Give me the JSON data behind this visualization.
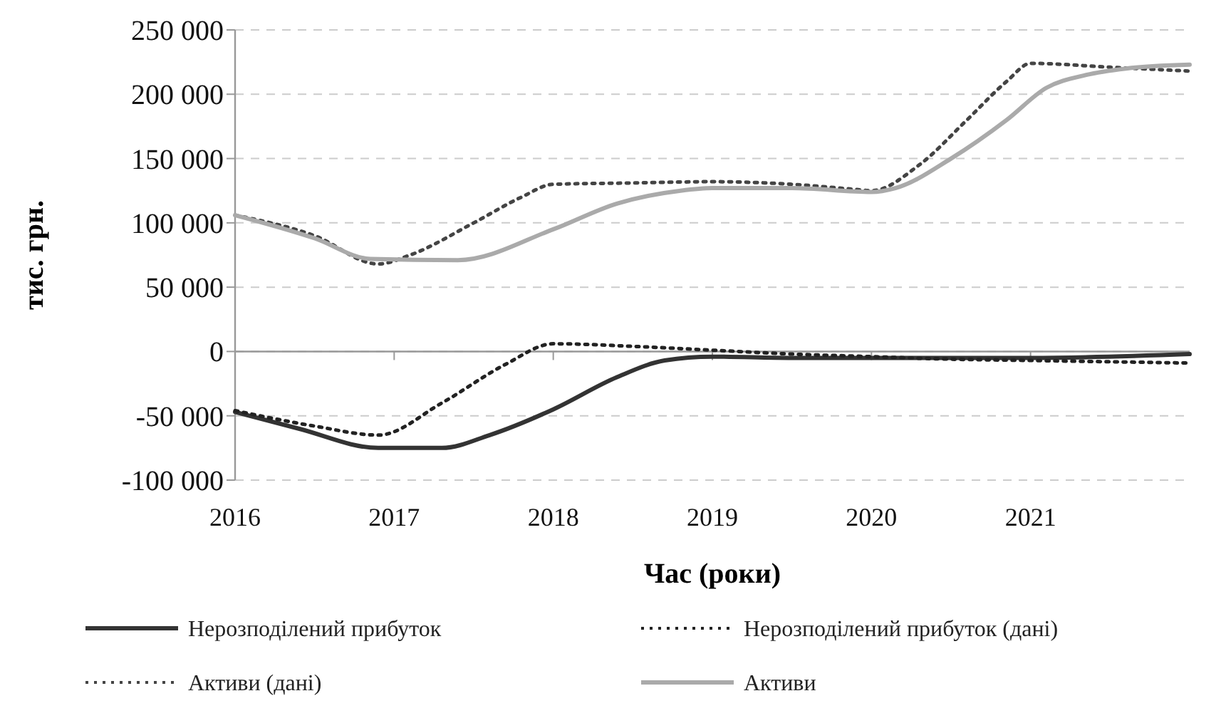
{
  "chart_data": {
    "type": "line",
    "xlabel": "Час (роки)",
    "ylabel": "тис. грн.",
    "xlim": [
      2016,
      2022
    ],
    "xticks": [
      2016,
      2017,
      2018,
      2019,
      2020,
      2021
    ],
    "ylim": [
      -100000,
      250000
    ],
    "yticks": [
      {
        "value": -100000,
        "label": "-100 000"
      },
      {
        "value": -50000,
        "label": "-50 000"
      },
      0,
      {
        "value": 50000,
        "label": "50 000"
      },
      {
        "value": 100000,
        "label": "100 000"
      },
      {
        "value": 150000,
        "label": "150 000"
      },
      {
        "value": 200000,
        "label": "200 000"
      },
      {
        "value": 250000,
        "label": "250 000"
      }
    ],
    "grid": "y",
    "legend": "bottom",
    "series": [
      {
        "name": "Нерозподілений прибуток",
        "color": "#333333",
        "line_style": "solid",
        "x": [
          2016,
          2016.4,
          2016.9,
          2017.3,
          2017.6,
          2018,
          2018.4,
          2018.7,
          2019,
          2019.5,
          2020,
          2021,
          2022
        ],
        "values": [
          -47000,
          -60000,
          -75000,
          -75000,
          -65000,
          -45000,
          -20000,
          -7000,
          -4000,
          -5000,
          -5000,
          -5000,
          -2000
        ]
      },
      {
        "name": "Нерозподілений прибуток (дані)",
        "color": "#222222",
        "line_style": "dotted",
        "x": [
          2016,
          2016.5,
          2016.9,
          2017.3,
          2017.7,
          2018,
          2018.5,
          2019,
          2019.5,
          2020,
          2020.5,
          2021,
          2021.5,
          2022
        ],
        "values": [
          -46000,
          -58000,
          -65000,
          -40000,
          -10000,
          6000,
          4000,
          1000,
          -2000,
          -4000,
          -6000,
          -7000,
          -8000,
          -9000
        ]
      },
      {
        "name": "Активи (дані)",
        "color": "#444444",
        "line_style": "dotted",
        "x": [
          2016,
          2016.5,
          2016.9,
          2017.1,
          2017.5,
          2017.8,
          2018,
          2018.5,
          2019,
          2019.5,
          2019.9,
          2020,
          2020.3,
          2020.6,
          2020.85,
          2021,
          2021.5,
          2022
        ],
        "values": [
          106000,
          90000,
          68000,
          75000,
          100000,
          120000,
          130000,
          131000,
          132000,
          130000,
          126000,
          125000,
          145000,
          180000,
          210000,
          224000,
          221000,
          218000
        ]
      },
      {
        "name": "Активи",
        "color": "#aaaaaa",
        "line_style": "solid",
        "x": [
          2016,
          2016.5,
          2016.85,
          2017.4,
          2018,
          2018.4,
          2018.8,
          2019,
          2019.5,
          2020,
          2020.15,
          2020.5,
          2020.85,
          2021.1,
          2021.35,
          2021.6,
          2022
        ],
        "values": [
          106000,
          88000,
          72000,
          71000,
          95000,
          115000,
          125000,
          127000,
          127000,
          124000,
          127000,
          150000,
          180000,
          205000,
          215000,
          220000,
          223000
        ]
      }
    ]
  }
}
